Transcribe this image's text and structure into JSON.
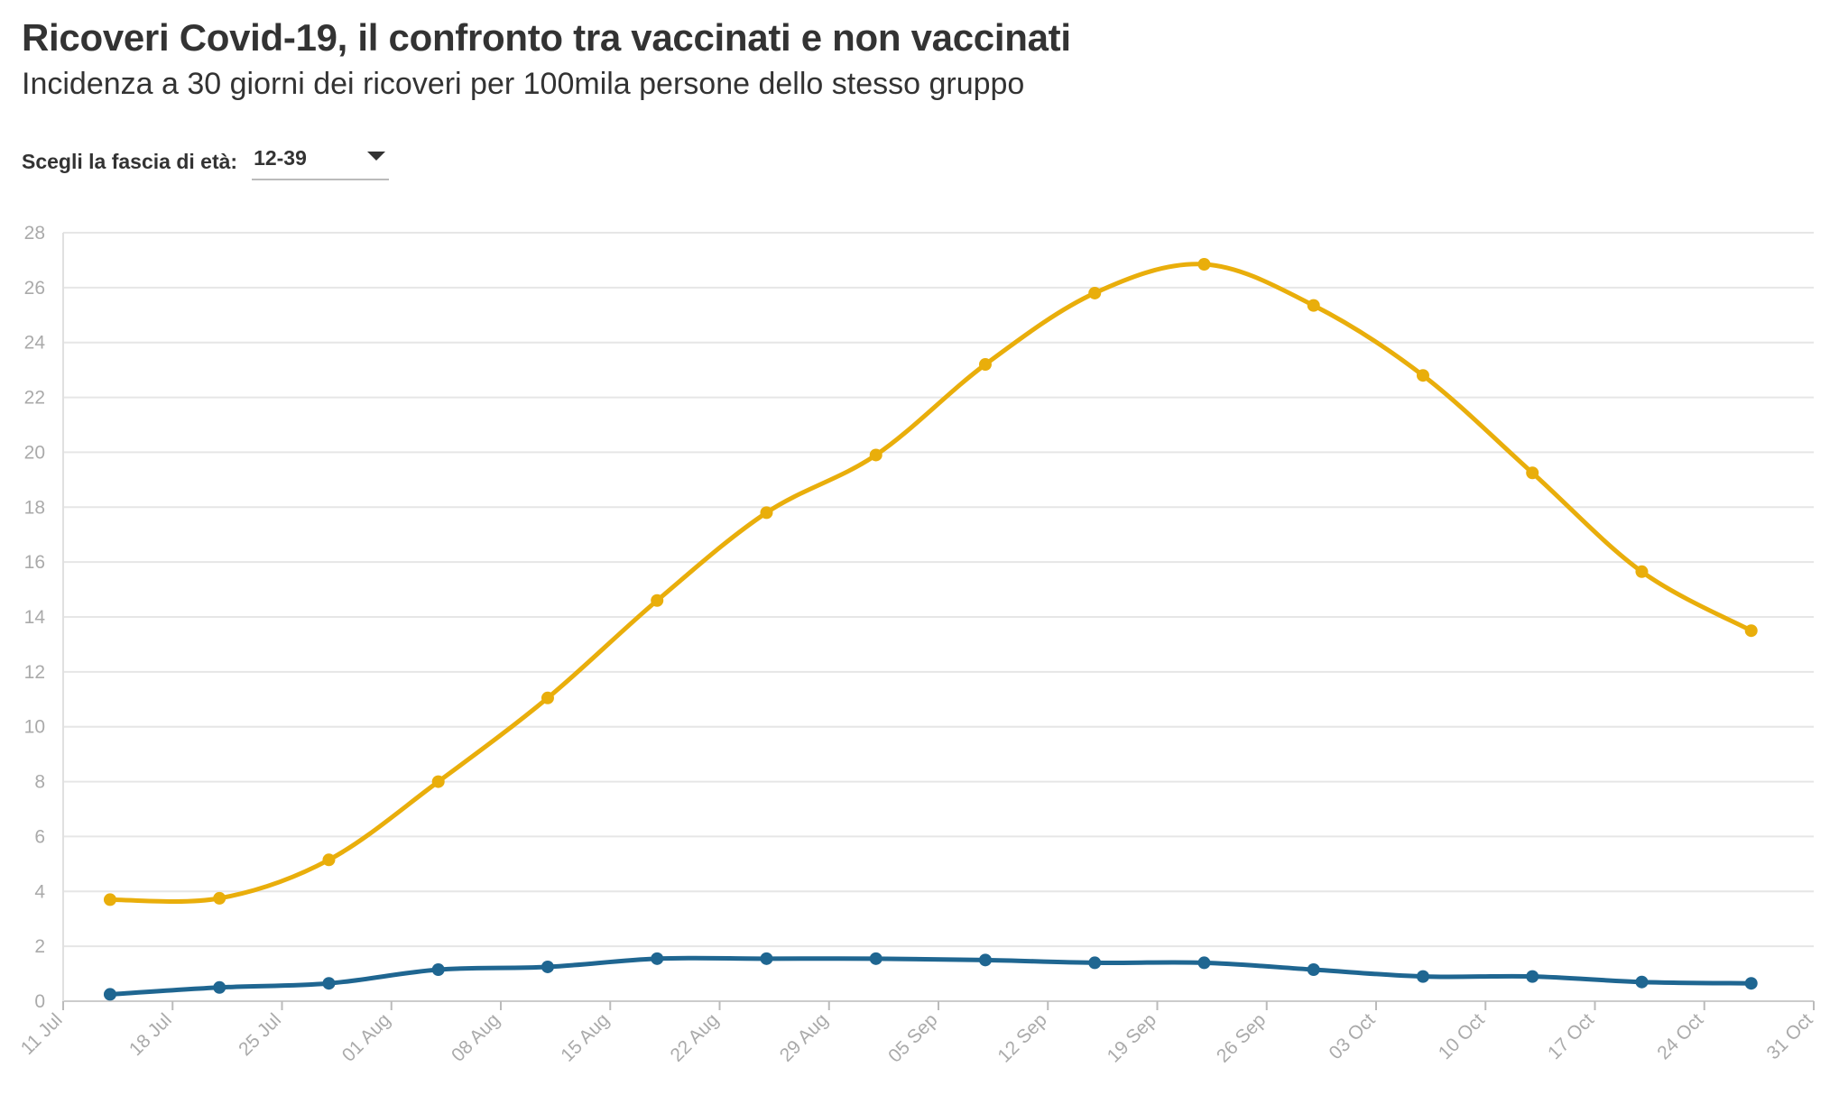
{
  "header": {
    "title": "Ricoveri Covid-19, il confronto tra vaccinati e non vaccinati",
    "subtitle": "Incidenza a 30 giorni dei ricoveri per 100mila persone dello stesso gruppo"
  },
  "filter": {
    "label": "Scegli la fascia di età:",
    "selected": "12-39"
  },
  "colors": {
    "unvaccinated": "#E9AE0B",
    "vaccinated": "#1F6691",
    "grid": "#E6E6E6",
    "tick_label": "#AAAAAA"
  },
  "chart_data": {
    "type": "line",
    "xlabel": "",
    "ylabel": "",
    "ylim": [
      0,
      28
    ],
    "yticks": [
      0,
      2,
      4,
      6,
      8,
      10,
      12,
      14,
      16,
      18,
      20,
      22,
      24,
      26,
      28
    ],
    "xlim": [
      "2021-07-11",
      "2021-10-31"
    ],
    "xticks": [
      "11 Jul",
      "18 Jul",
      "25 Jul",
      "01 Aug",
      "08 Aug",
      "15 Aug",
      "22 Aug",
      "29 Aug",
      "05 Sep",
      "12 Sep",
      "19 Sep",
      "26 Sep",
      "03 Oct",
      "10 Oct",
      "17 Oct",
      "24 Oct",
      "31 Oct"
    ],
    "xtick_dates": [
      "2021-07-11",
      "2021-07-18",
      "2021-07-25",
      "2021-08-01",
      "2021-08-08",
      "2021-08-15",
      "2021-08-22",
      "2021-08-29",
      "2021-09-05",
      "2021-09-12",
      "2021-09-19",
      "2021-09-26",
      "2021-10-03",
      "2021-10-10",
      "2021-10-17",
      "2021-10-24",
      "2021-10-31"
    ],
    "x": [
      "2021-07-14",
      "2021-07-21",
      "2021-07-28",
      "2021-08-04",
      "2021-08-11",
      "2021-08-18",
      "2021-08-25",
      "2021-09-01",
      "2021-09-08",
      "2021-09-15",
      "2021-09-22",
      "2021-09-29",
      "2021-10-06",
      "2021-10-13",
      "2021-10-20",
      "2021-10-27"
    ],
    "grid": true,
    "legend": "none",
    "series": [
      {
        "key": "unvaccinated",
        "values": [
          3.7,
          3.75,
          5.15,
          8.0,
          11.05,
          14.6,
          17.8,
          19.9,
          23.2,
          25.8,
          26.85,
          25.35,
          22.8,
          19.25,
          15.65,
          13.5
        ]
      },
      {
        "key": "vaccinated",
        "values": [
          0.25,
          0.5,
          0.65,
          1.15,
          1.25,
          1.55,
          1.55,
          1.55,
          1.5,
          1.4,
          1.4,
          1.15,
          0.9,
          0.9,
          0.7,
          0.65
        ]
      }
    ]
  }
}
